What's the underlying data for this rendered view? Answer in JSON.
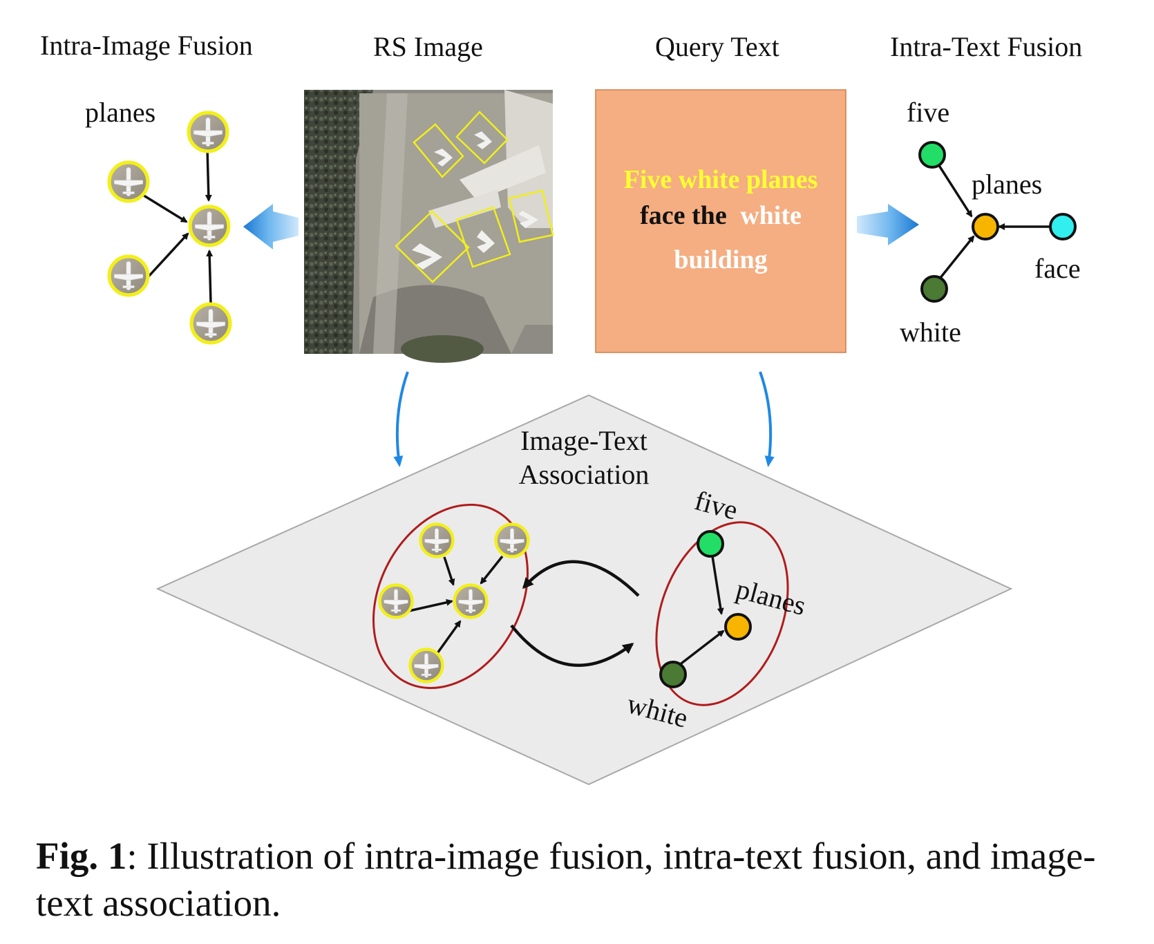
{
  "headers": {
    "intra_image": "Intra-Image Fusion",
    "rs_image": "RS Image",
    "query_text": "Query Text",
    "intra_text": "Intra-Text Fusion"
  },
  "intra_image_graph": {
    "label": "planes"
  },
  "query_box": {
    "line1": "Five white planes",
    "line2_black": "face the",
    "line2_white": "white",
    "line3": "building"
  },
  "intra_text_graph": {
    "five": "five",
    "planes": "planes",
    "face": "face",
    "white": "white"
  },
  "association": {
    "title_line1": "Image-Text",
    "title_line2": "Association",
    "five": "five",
    "planes": "planes",
    "white": "white"
  },
  "caption": {
    "prefix": "Fig. 1",
    "text": ": Illustration of intra-image fusion, intra-text fusion, and image-text association."
  },
  "colors": {
    "query_box_bg": "#f4ae82",
    "query_highlight": "#ffff33",
    "plane_ring": "#f2ef1a",
    "node_five": "#22dd66",
    "node_planes": "#f7b500",
    "node_face": "#33eeee",
    "node_white": "#4a7a33",
    "arrow_blue": "#1e88e5",
    "ellipse_red": "#b01c1c",
    "plane_bg": "#e8e8e8"
  }
}
